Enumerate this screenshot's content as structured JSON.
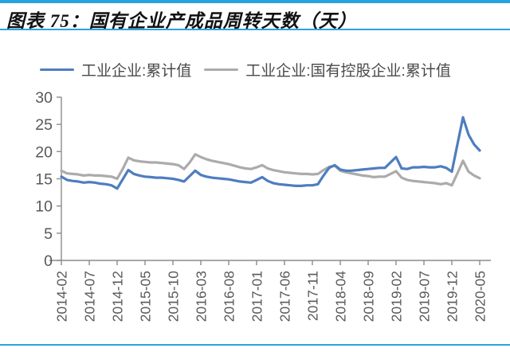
{
  "header": {
    "title": "图表 75：国有企业产成品周转天数（天）",
    "accent_color": "#29A3DC"
  },
  "legend": {
    "items": [
      {
        "label": "工业企业:累计值",
        "color": "#4E7DC0"
      },
      {
        "label": "工业企业:国有控股企业:累计值",
        "color": "#ABABAB"
      }
    ]
  },
  "chart_data": {
    "type": "line",
    "title": "国有企业产成品周转天数（天）",
    "ylabel": "天",
    "ylim": [
      0,
      30
    ],
    "y_ticks": [
      0,
      5,
      10,
      15,
      20,
      25,
      30
    ],
    "grid": false,
    "legend_position": "top",
    "axis_color": "#8c8c8c",
    "tick_label_color": "#595959",
    "x": [
      "2014-02",
      "2014-03",
      "2014-04",
      "2014-05",
      "2014-06",
      "2014-07",
      "2014-08",
      "2014-09",
      "2014-10",
      "2014-11",
      "2014-12",
      "2015-01",
      "2015-02",
      "2015-03",
      "2015-04",
      "2015-05",
      "2015-06",
      "2015-07",
      "2015-08",
      "2015-09",
      "2015-10",
      "2015-11",
      "2015-12",
      "2016-01",
      "2016-02",
      "2016-03",
      "2016-04",
      "2016-05",
      "2016-06",
      "2016-07",
      "2016-08",
      "2016-09",
      "2016-10",
      "2016-11",
      "2016-12",
      "2017-01",
      "2017-02",
      "2017-03",
      "2017-04",
      "2017-05",
      "2017-06",
      "2017-07",
      "2017-08",
      "2017-09",
      "2017-10",
      "2017-11",
      "2017-12",
      "2018-01",
      "2018-02",
      "2018-03",
      "2018-04",
      "2018-05",
      "2018-06",
      "2018-07",
      "2018-08",
      "2018-09",
      "2018-10",
      "2018-11",
      "2018-12",
      "2019-01",
      "2019-02",
      "2019-03",
      "2019-04",
      "2019-05",
      "2019-06",
      "2019-07",
      "2019-08",
      "2019-09",
      "2019-10",
      "2019-11",
      "2019-12",
      "2020-01",
      "2020-02",
      "2020-03",
      "2020-04",
      "2020-05"
    ],
    "x_tick_labels": [
      "2014-02",
      "2014-07",
      "2014-12",
      "2015-05",
      "2015-10",
      "2016-03",
      "2016-08",
      "2017-01",
      "2017-06",
      "2017-11",
      "2018-04",
      "2018-09",
      "2019-02",
      "2019-07",
      "2019-12",
      "2020-05"
    ],
    "x_tick_step": 5,
    "series": [
      {
        "name": "工业企业:累计值",
        "color": "#4E7DC0",
        "values": [
          15.4,
          14.8,
          14.6,
          14.5,
          14.3,
          14.4,
          14.3,
          14.1,
          14.0,
          13.8,
          13.2,
          14.9,
          16.6,
          15.9,
          15.6,
          15.4,
          15.3,
          15.2,
          15.2,
          15.1,
          15.0,
          14.8,
          14.5,
          15.5,
          16.5,
          15.7,
          15.4,
          15.2,
          15.1,
          15.0,
          14.9,
          14.7,
          14.5,
          14.4,
          14.3,
          14.8,
          15.3,
          14.6,
          14.2,
          14.0,
          13.9,
          13.8,
          13.7,
          13.7,
          13.8,
          13.8,
          14.0,
          15.6,
          17.0,
          17.5,
          16.7,
          16.5,
          16.5,
          16.6,
          16.7,
          16.8,
          16.9,
          17.0,
          17.0,
          18.0,
          19.0,
          16.9,
          16.8,
          17.1,
          17.1,
          17.2,
          17.1,
          17.1,
          17.3,
          17.0,
          16.3,
          21.3,
          26.3,
          23.1,
          21.3,
          20.2
        ]
      },
      {
        "name": "工业企业:国有控股企业:累计值",
        "color": "#ABABAB",
        "values": [
          16.5,
          16.0,
          15.9,
          15.8,
          15.6,
          15.7,
          15.6,
          15.6,
          15.5,
          15.4,
          15.0,
          16.8,
          18.9,
          18.4,
          18.2,
          18.1,
          18.0,
          18.0,
          17.9,
          17.8,
          17.7,
          17.5,
          16.8,
          18.0,
          19.5,
          19.0,
          18.6,
          18.3,
          18.1,
          17.9,
          17.7,
          17.4,
          17.1,
          16.9,
          16.8,
          17.1,
          17.5,
          16.9,
          16.6,
          16.4,
          16.2,
          16.1,
          16.0,
          15.9,
          15.9,
          15.8,
          15.9,
          16.6,
          17.2,
          17.4,
          16.5,
          16.2,
          16.0,
          15.8,
          15.6,
          15.5,
          15.3,
          15.4,
          15.4,
          15.9,
          16.4,
          15.2,
          14.8,
          14.6,
          14.5,
          14.4,
          14.3,
          14.2,
          14.0,
          14.2,
          13.8,
          16.0,
          18.3,
          16.3,
          15.6,
          15.1
        ]
      }
    ]
  }
}
